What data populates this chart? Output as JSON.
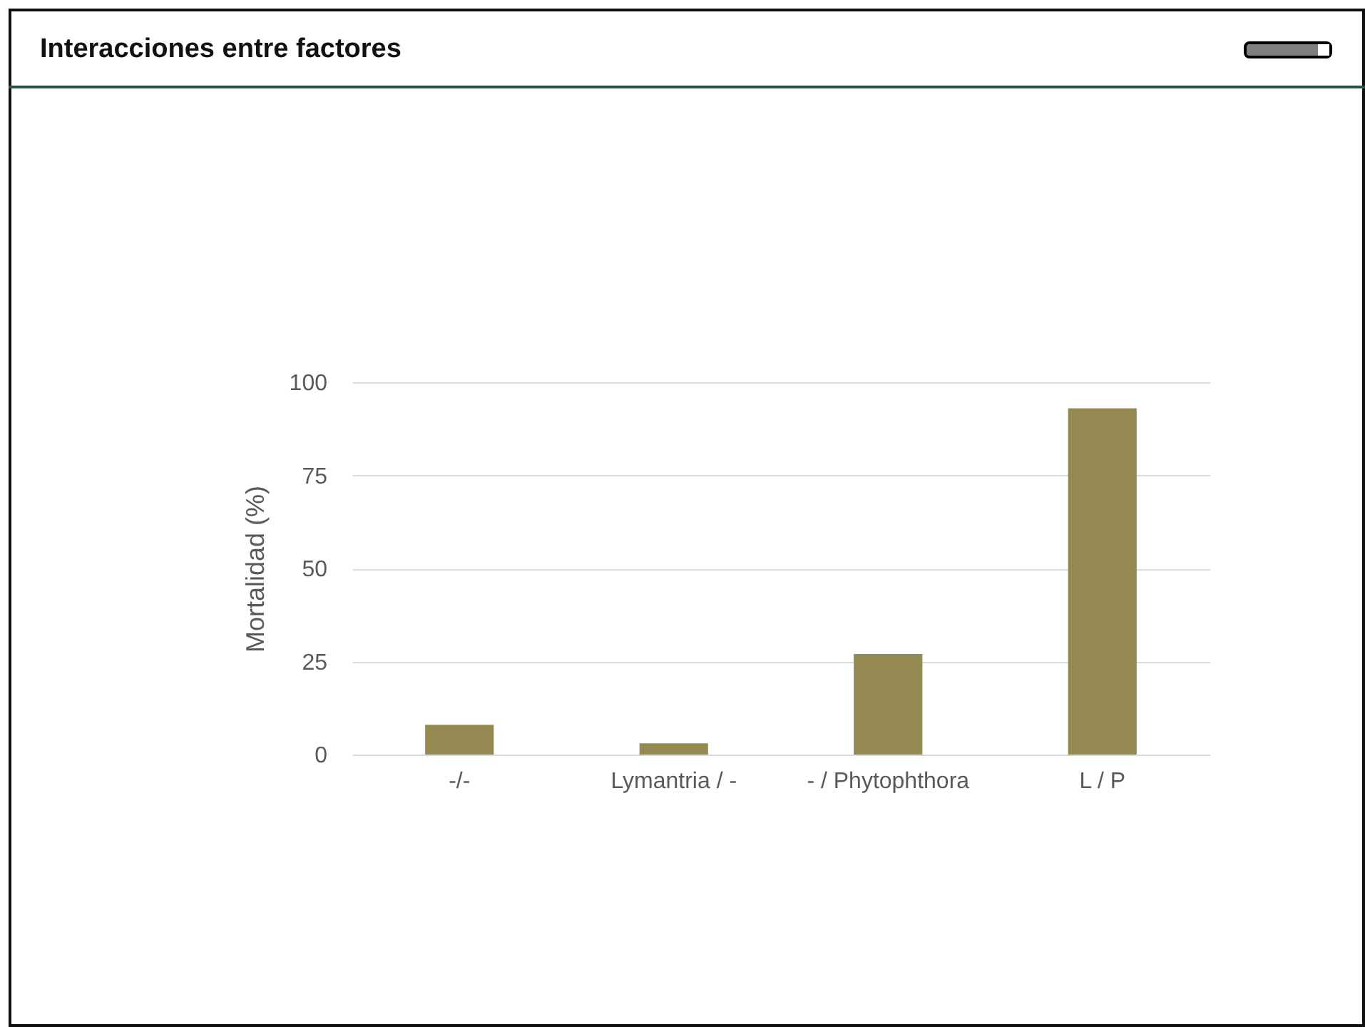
{
  "chart_data": {
    "type": "bar",
    "title": "Interacciones entre factores",
    "ylabel": "Mortalidad (%)",
    "categories": [
      "-/-",
      "Lymantria / -",
      "- / Phytophthora",
      "L / P"
    ],
    "values": [
      8,
      3,
      27,
      93
    ],
    "color": "#938951",
    "ylim": [
      0,
      100
    ],
    "yticks": [
      0,
      25,
      50,
      75,
      100
    ],
    "grid": "y"
  }
}
